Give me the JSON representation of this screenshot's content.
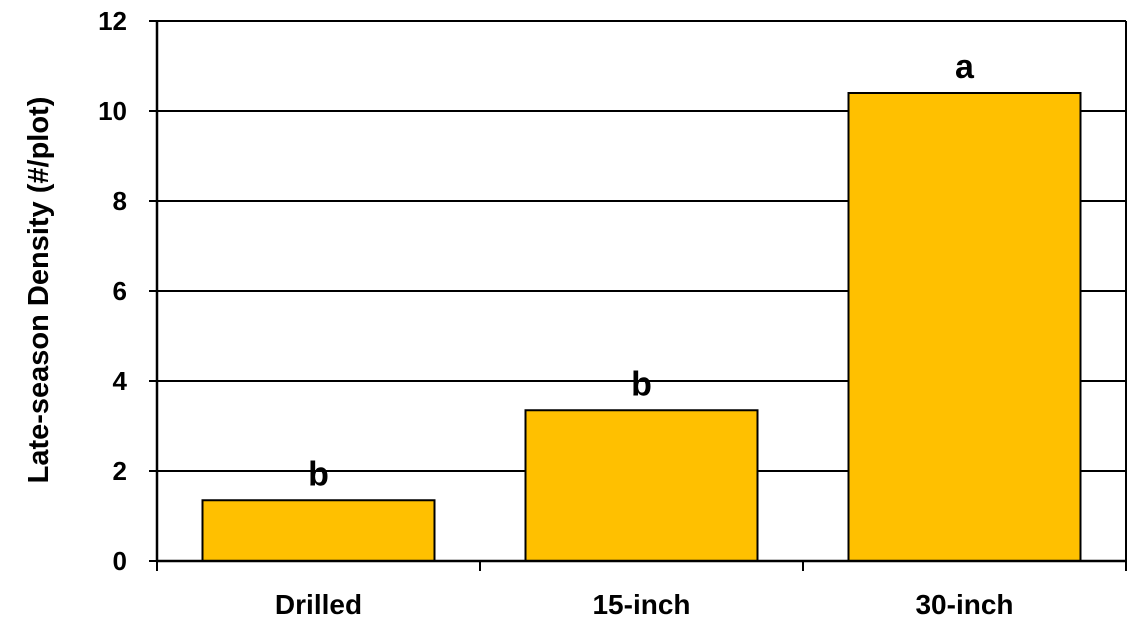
{
  "chart_data": {
    "type": "bar",
    "title": "",
    "xlabel": "",
    "ylabel": "Late-season Density (#/plot)",
    "categories": [
      "Drilled",
      "15-inch",
      "30-inch"
    ],
    "values": [
      1.35,
      3.35,
      10.4
    ],
    "significance_letters": [
      "b",
      "b",
      "a"
    ],
    "ylim": [
      0,
      12
    ],
    "yticks": [
      0,
      2,
      4,
      6,
      8,
      10,
      12
    ],
    "grid": true,
    "legend": "none",
    "colors": {
      "bar_fill": "#FFC000",
      "bar_stroke": "#000000",
      "grid": "#000000",
      "axis": "#000000",
      "background": "#FFFFFF"
    }
  }
}
